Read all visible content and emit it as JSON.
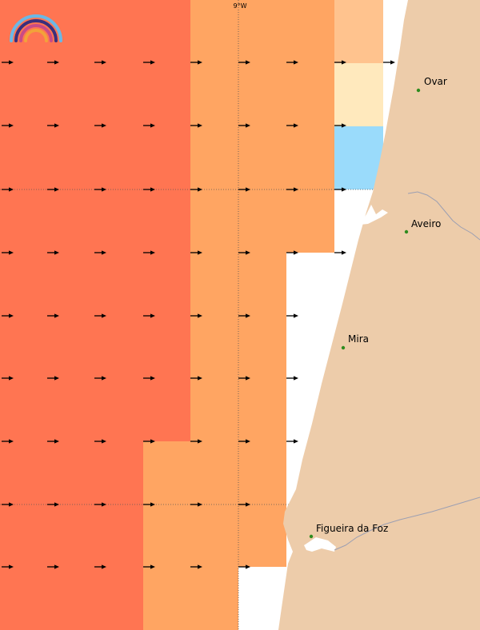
{
  "map": {
    "meridian_label": "9°W",
    "colors": {
      "sea_strong": "#FF7552",
      "sea_medium": "#FFA562",
      "sea_light": "#FFC38E",
      "sea_pale": "#FFE9BD",
      "sea_blue": "#9ADBFB",
      "land": "#EDCCAA",
      "river": "#9C9FB2",
      "town_marker": "#2E8B1E",
      "arrow": "#000000"
    },
    "logo": {
      "name": "rainbow-logo-icon"
    },
    "cities": [
      {
        "id": "ovar",
        "name": "Ovar"
      },
      {
        "id": "aveiro",
        "name": "Aveiro"
      },
      {
        "id": "mira",
        "name": "Mira"
      },
      {
        "id": "figueira",
        "name": "Figueira da Foz"
      }
    ],
    "arrow_direction": "east"
  }
}
